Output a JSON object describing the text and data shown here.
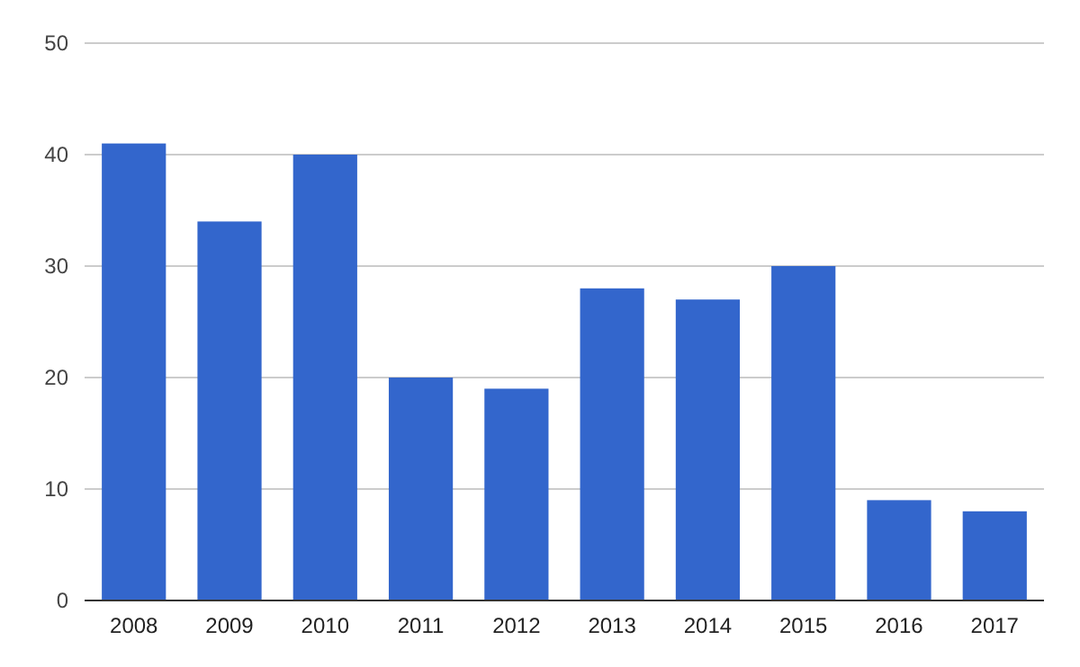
{
  "chart_data": {
    "type": "bar",
    "categories": [
      "2008",
      "2009",
      "2010",
      "2011",
      "2012",
      "2013",
      "2014",
      "2015",
      "2016",
      "2017"
    ],
    "values": [
      41,
      34,
      40,
      20,
      19,
      28,
      27,
      30,
      9,
      8
    ],
    "color": "#3366cc",
    "ylim": [
      0,
      50
    ],
    "yticks": [
      0,
      10,
      20,
      30,
      40,
      50
    ],
    "grid": "y"
  }
}
